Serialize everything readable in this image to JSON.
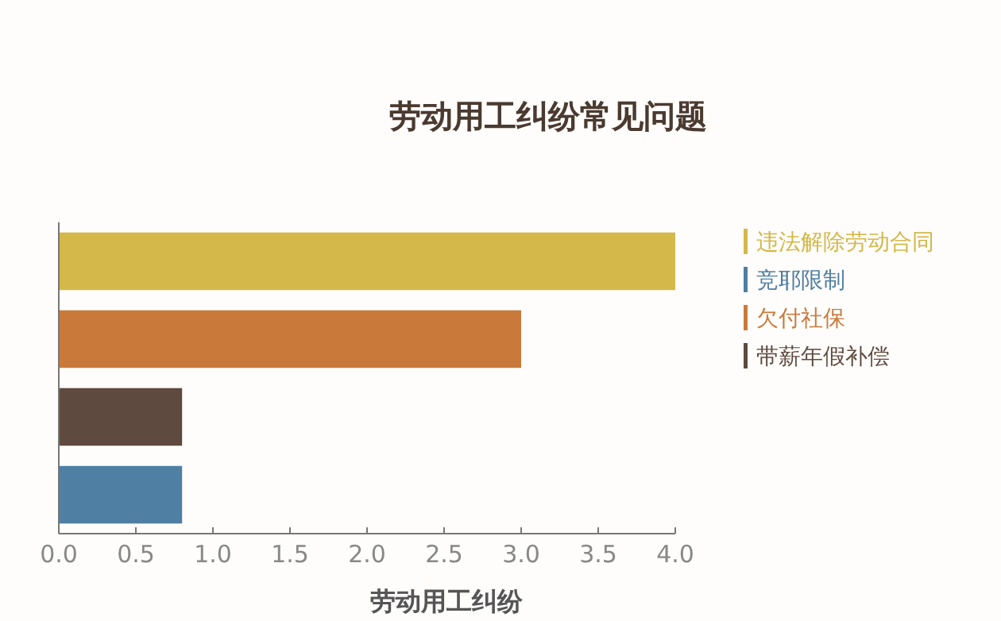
{
  "chart_data": {
    "type": "bar",
    "orientation": "horizontal",
    "title": "劳动用工纠纷常见问题",
    "xlabel": "劳动用工纠纷",
    "categories": [
      null,
      null,
      null,
      null
    ],
    "series": [
      {
        "name": "违法解除劳动合同",
        "color": "#d4b84a",
        "values": [
          4.0,
          null,
          null,
          null
        ]
      },
      {
        "name": "竞耶限制",
        "color": "#4f7fa3",
        "values": [
          null,
          null,
          null,
          0.8
        ]
      },
      {
        "name": "欠付社保",
        "color": "#c97a3a",
        "values": [
          null,
          3.0,
          null,
          null
        ]
      },
      {
        "name": "带薪年假补偿",
        "color": "#5e4a3e",
        "values": [
          null,
          null,
          0.8,
          null
        ]
      }
    ],
    "xlim": [
      0,
      4
    ],
    "xticks": [
      {
        "value": 0,
        "label": "0.0"
      },
      {
        "value": 0.5,
        "label": "0.5"
      },
      {
        "value": 1,
        "label": "1.0"
      },
      {
        "value": 1.5,
        "label": "1.5"
      },
      {
        "value": 2,
        "label": "2.0"
      },
      {
        "value": 2.5,
        "label": "2.5"
      },
      {
        "value": 3,
        "label": "3.0"
      },
      {
        "value": 3.5,
        "label": "3.5"
      },
      {
        "value": 4,
        "label": "4.0"
      }
    ],
    "grid": false,
    "legend": "right"
  }
}
